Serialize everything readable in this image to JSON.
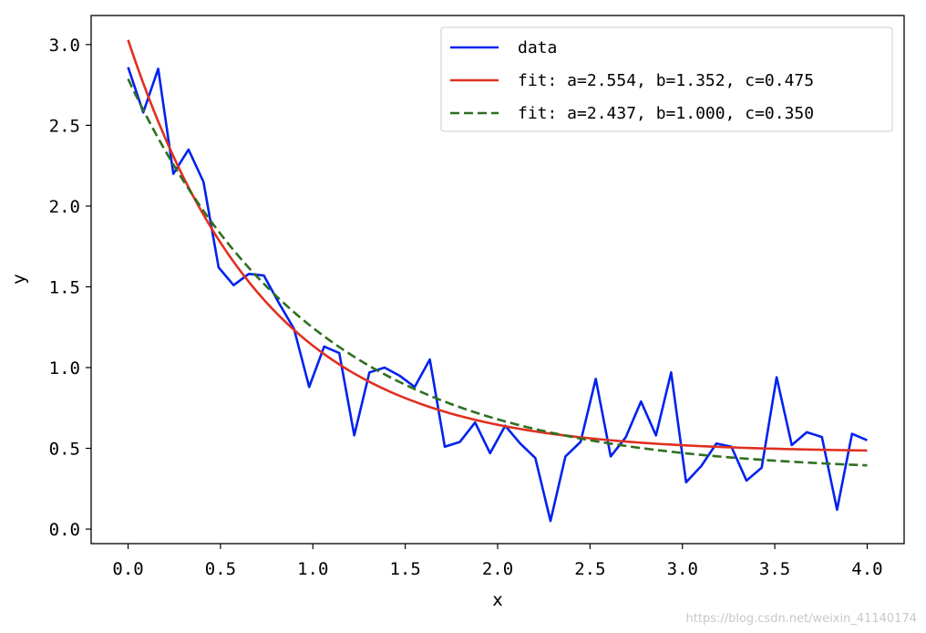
{
  "chart_data": {
    "type": "line",
    "xlabel": "x",
    "ylabel": "y",
    "xlim": [
      -0.2,
      4.2
    ],
    "ylim": [
      -0.09,
      3.18
    ],
    "xticks": [
      0.0,
      0.5,
      1.0,
      1.5,
      2.0,
      2.5,
      3.0,
      3.5,
      4.0
    ],
    "xtick_labels": [
      "0.0",
      "0.5",
      "1.0",
      "1.5",
      "2.0",
      "2.5",
      "3.0",
      "3.5",
      "4.0"
    ],
    "yticks": [
      0.0,
      0.5,
      1.0,
      1.5,
      2.0,
      2.5,
      3.0
    ],
    "ytick_labels": [
      "0.0",
      "0.5",
      "1.0",
      "1.5",
      "2.0",
      "2.5",
      "3.0"
    ],
    "grid": false,
    "legend_position": "top-right",
    "series": [
      {
        "name": "data",
        "color": "#0022ee",
        "style": "solid",
        "x": [
          0.0,
          0.082,
          0.163,
          0.245,
          0.327,
          0.408,
          0.49,
          0.571,
          0.653,
          0.735,
          0.816,
          0.898,
          0.98,
          1.061,
          1.143,
          1.224,
          1.306,
          1.388,
          1.469,
          1.551,
          1.633,
          1.714,
          1.796,
          1.878,
          1.959,
          2.041,
          2.122,
          2.204,
          2.286,
          2.367,
          2.449,
          2.531,
          2.612,
          2.694,
          2.776,
          2.857,
          2.939,
          3.02,
          3.102,
          3.184,
          3.265,
          3.347,
          3.429,
          3.51,
          3.592,
          3.673,
          3.755,
          3.837,
          3.918,
          4.0
        ],
        "y": [
          2.86,
          2.58,
          2.85,
          2.2,
          2.35,
          2.15,
          1.62,
          1.51,
          1.58,
          1.57,
          1.4,
          1.24,
          0.88,
          1.13,
          1.09,
          0.58,
          0.97,
          1.0,
          0.95,
          0.88,
          1.05,
          0.51,
          0.54,
          0.66,
          0.47,
          0.64,
          0.53,
          0.44,
          0.05,
          0.45,
          0.54,
          0.93,
          0.45,
          0.57,
          0.79,
          0.58,
          0.97,
          0.29,
          0.39,
          0.53,
          0.51,
          0.3,
          0.38,
          0.94,
          0.52,
          0.6,
          0.57,
          0.12,
          0.59,
          0.55
        ]
      },
      {
        "name": "fit: a=2.554, b=1.352, c=0.475",
        "color": "#e03020",
        "style": "solid",
        "model": "a*exp(-b*x)+c",
        "params": {
          "a": 2.554,
          "b": 1.352,
          "c": 0.475
        }
      },
      {
        "name": "fit: a=2.437, b=1.000, c=0.350",
        "color": "#2e7020",
        "style": "dashed",
        "model": "a*exp(-b*x)+c",
        "params": {
          "a": 2.437,
          "b": 1.0,
          "c": 0.35
        }
      }
    ]
  },
  "watermark": "https://blog.csdn.net/weixin_41140174"
}
